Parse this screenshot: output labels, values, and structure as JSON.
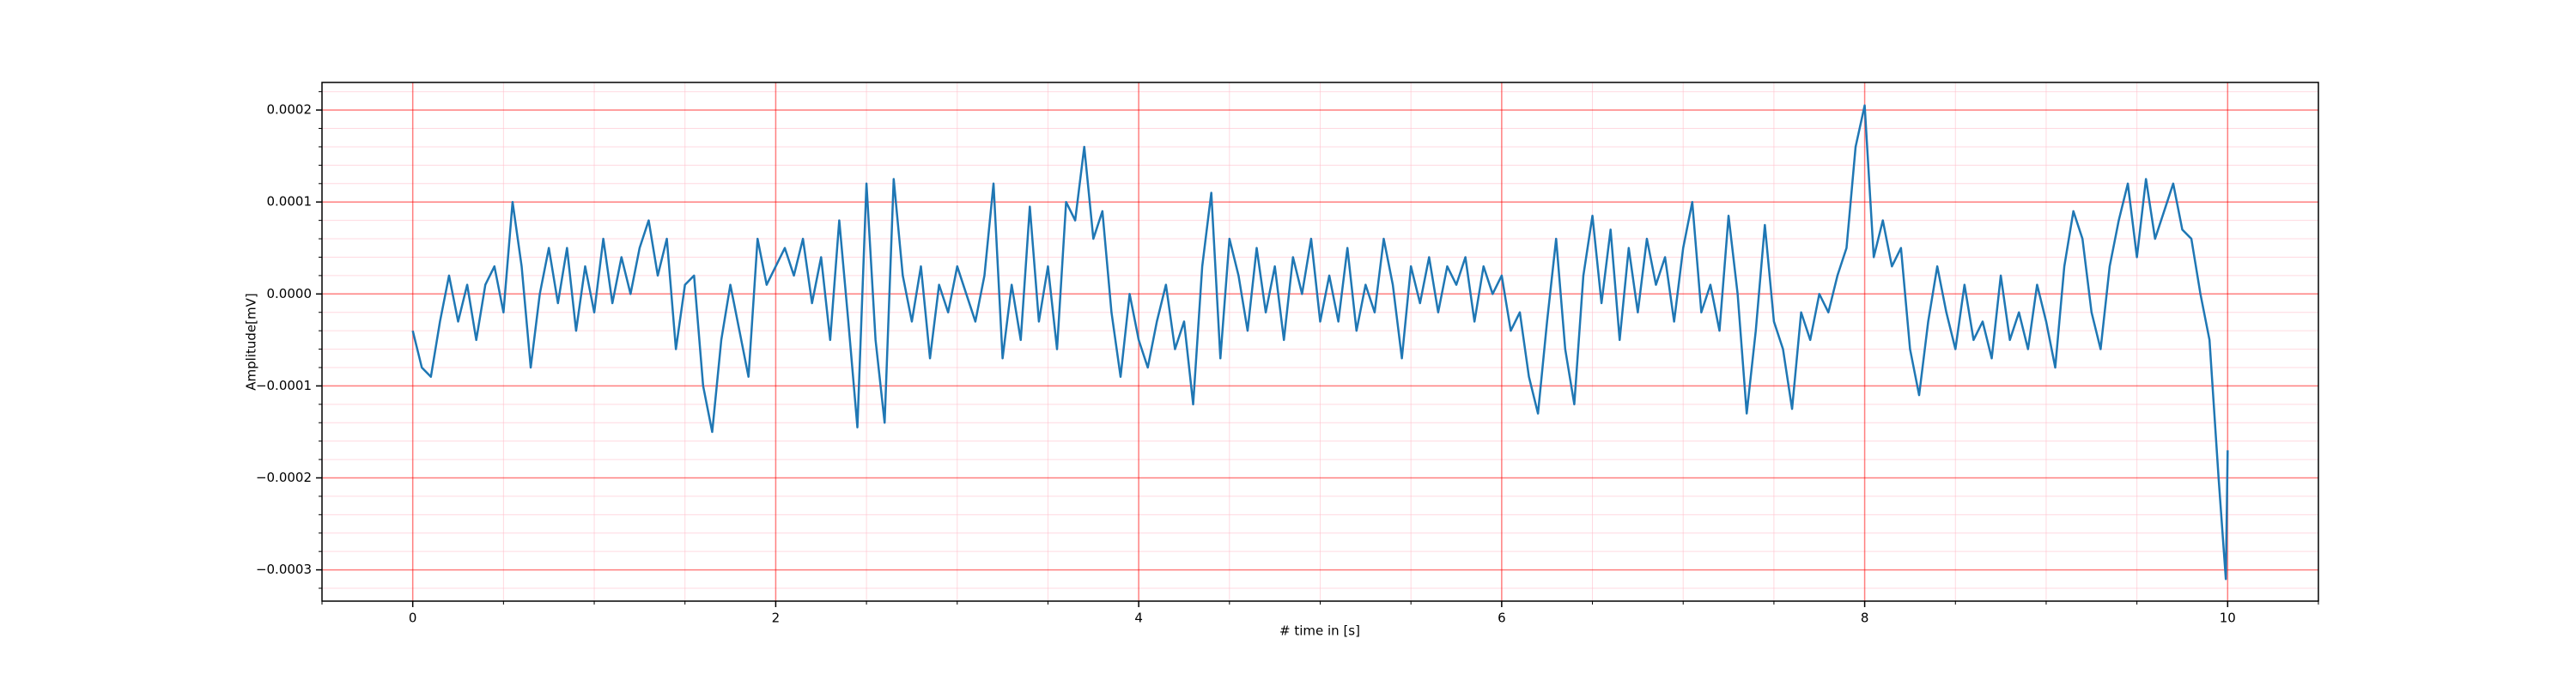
{
  "chart_data": {
    "type": "line",
    "xlabel": "# time in [s]",
    "ylabel": "Amplitude[mV]",
    "xlim": [
      -0.5,
      10.5
    ],
    "ylim": [
      -0.000334,
      0.00023
    ],
    "xticks": [
      0,
      2,
      4,
      6,
      8,
      10
    ],
    "yticks": [
      {
        "value": -0.0003,
        "label": "−0.0003"
      },
      {
        "value": -0.0002,
        "label": "−0.0002"
      },
      {
        "value": -0.0001,
        "label": "−0.0001"
      },
      {
        "value": 0,
        "label": "0.0000"
      },
      0.0001,
      0.0002
    ],
    "minor_xticks": [
      -0.5,
      0.5,
      1,
      1.5,
      2.5,
      3,
      3.5,
      4.5,
      5,
      5.5,
      6.5,
      7,
      7.5,
      8.5,
      9,
      9.5,
      10.5
    ],
    "minor_yticks": [
      -0.00032,
      -0.00028,
      -0.00026,
      -0.00024,
      -0.00022,
      -0.00018,
      -0.00016,
      -0.00014,
      -0.00012,
      -8e-05,
      -6e-05,
      -4e-05,
      -2e-05,
      2e-05,
      4e-05,
      6e-05,
      8e-05,
      0.00012,
      0.00014,
      0.00016,
      0.00018,
      0.00022
    ],
    "grid": true,
    "minor_grid": true,
    "series": [
      {
        "color": "#1f77b4",
        "x": [
          0,
          0.05,
          0.1,
          0.15,
          0.2,
          0.25,
          0.3,
          0.35,
          0.4,
          0.45,
          0.5,
          0.55,
          0.6,
          0.65,
          0.7,
          0.75,
          0.8,
          0.85,
          0.9,
          0.95,
          1,
          1.05,
          1.1,
          1.15,
          1.2,
          1.25,
          1.3,
          1.35,
          1.4,
          1.45,
          1.5,
          1.55,
          1.6,
          1.65,
          1.7,
          1.75,
          1.8,
          1.85,
          1.9,
          1.95,
          2,
          2.05,
          2.1,
          2.15,
          2.2,
          2.25,
          2.3,
          2.35,
          2.4,
          2.45,
          2.5,
          2.55,
          2.6,
          2.65,
          2.7,
          2.75,
          2.8,
          2.85,
          2.9,
          2.95,
          3,
          3.05,
          3.1,
          3.15,
          3.2,
          3.25,
          3.3,
          3.35,
          3.4,
          3.45,
          3.5,
          3.55,
          3.6,
          3.65,
          3.7,
          3.75,
          3.8,
          3.85,
          3.9,
          3.95,
          4,
          4.05,
          4.1,
          4.15,
          4.2,
          4.25,
          4.3,
          4.35,
          4.4,
          4.45,
          4.5,
          4.55,
          4.6,
          4.65,
          4.7,
          4.75,
          4.8,
          4.85,
          4.9,
          4.95,
          5,
          5.05,
          5.1,
          5.15,
          5.2,
          5.25,
          5.3,
          5.35,
          5.4,
          5.45,
          5.5,
          5.55,
          5.6,
          5.65,
          5.7,
          5.75,
          5.8,
          5.85,
          5.9,
          5.95,
          6,
          6.05,
          6.1,
          6.15,
          6.2,
          6.25,
          6.3,
          6.35,
          6.4,
          6.45,
          6.5,
          6.55,
          6.6,
          6.65,
          6.7,
          6.75,
          6.8,
          6.85,
          6.9,
          6.95,
          7,
          7.05,
          7.1,
          7.15,
          7.2,
          7.25,
          7.3,
          7.35,
          7.4,
          7.45,
          7.5,
          7.55,
          7.6,
          7.65,
          7.7,
          7.75,
          7.8,
          7.85,
          7.9,
          7.95,
          8,
          8.05,
          8.1,
          8.15,
          8.2,
          8.25,
          8.3,
          8.35,
          8.4,
          8.45,
          8.5,
          8.55,
          8.6,
          8.65,
          8.7,
          8.75,
          8.8,
          8.85,
          8.9,
          8.95,
          9,
          9.05,
          9.1,
          9.15,
          9.2,
          9.25,
          9.3,
          9.35,
          9.4,
          9.45,
          9.5,
          9.55,
          9.6,
          9.65,
          9.7,
          9.75,
          9.8,
          9.85,
          9.9,
          9.95,
          9.99,
          10
        ],
        "values": [
          -4e-05,
          -8e-05,
          -9e-05,
          -3e-05,
          2e-05,
          -3e-05,
          1e-05,
          -5e-05,
          1e-05,
          3e-05,
          -2e-05,
          0.0001,
          3e-05,
          -8e-05,
          0,
          5e-05,
          -1e-05,
          5e-05,
          -4e-05,
          3e-05,
          -2e-05,
          6e-05,
          -1e-05,
          4e-05,
          0,
          5e-05,
          8e-05,
          2e-05,
          6e-05,
          -6e-05,
          1e-05,
          2e-05,
          -0.0001,
          -0.00015,
          -5e-05,
          1e-05,
          -4e-05,
          -9e-05,
          6e-05,
          1e-05,
          3e-05,
          5e-05,
          2e-05,
          6e-05,
          -1e-05,
          4e-05,
          -5e-05,
          8e-05,
          -3e-05,
          -0.000145,
          0.00012,
          -5e-05,
          -0.00014,
          0.000125,
          2e-05,
          -3e-05,
          3e-05,
          -7e-05,
          1e-05,
          -2e-05,
          3e-05,
          0,
          -3e-05,
          2e-05,
          0.00012,
          -7e-05,
          1e-05,
          -5e-05,
          9.5e-05,
          -3e-05,
          3e-05,
          -6e-05,
          0.0001,
          8e-05,
          0.00016,
          6e-05,
          9e-05,
          -2e-05,
          -9e-05,
          0,
          -5e-05,
          -8e-05,
          -3e-05,
          1e-05,
          -6e-05,
          -3e-05,
          -0.00012,
          3e-05,
          0.00011,
          -7e-05,
          6e-05,
          2e-05,
          -4e-05,
          5e-05,
          -2e-05,
          3e-05,
          -5e-05,
          4e-05,
          0,
          6e-05,
          -3e-05,
          2e-05,
          -3e-05,
          5e-05,
          -4e-05,
          1e-05,
          -2e-05,
          6e-05,
          1e-05,
          -7e-05,
          3e-05,
          -1e-05,
          4e-05,
          -2e-05,
          3e-05,
          1e-05,
          4e-05,
          -3e-05,
          3e-05,
          0,
          2e-05,
          -4e-05,
          -2e-05,
          -9e-05,
          -0.00013,
          -3e-05,
          6e-05,
          -6e-05,
          -0.00012,
          2e-05,
          8.5e-05,
          -1e-05,
          7e-05,
          -5e-05,
          5e-05,
          -2e-05,
          6e-05,
          1e-05,
          4e-05,
          -3e-05,
          5e-05,
          0.0001,
          -2e-05,
          1e-05,
          -4e-05,
          8.5e-05,
          0,
          -0.00013,
          -4e-05,
          7.5e-05,
          -3e-05,
          -6e-05,
          -0.000125,
          -2e-05,
          -5e-05,
          0,
          -2e-05,
          2e-05,
          5e-05,
          0.00016,
          0.000205,
          4e-05,
          8e-05,
          3e-05,
          5e-05,
          -6e-05,
          -0.00011,
          -3e-05,
          3e-05,
          -2e-05,
          -6e-05,
          1e-05,
          -5e-05,
          -3e-05,
          -7e-05,
          2e-05,
          -5e-05,
          -2e-05,
          -6e-05,
          1e-05,
          -3e-05,
          -8e-05,
          3e-05,
          9e-05,
          6e-05,
          -2e-05,
          -6e-05,
          3e-05,
          8e-05,
          0.00012,
          4e-05,
          0.000125,
          6e-05,
          9e-05,
          0.00012,
          7e-05,
          6e-05,
          0,
          -5e-05,
          -0.0002,
          -0.00031,
          -0.00017
        ]
      }
    ]
  }
}
